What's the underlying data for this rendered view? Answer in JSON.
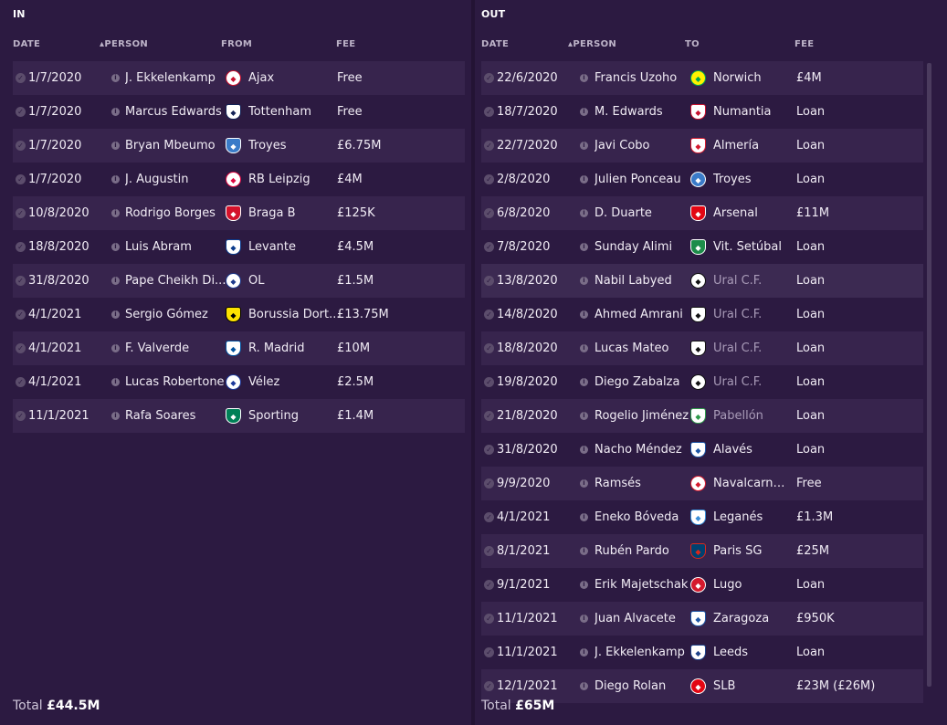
{
  "in": {
    "title": "IN",
    "headers": {
      "date": "DATE",
      "person": "PERSON",
      "from": "FROM",
      "fee": "FEE"
    },
    "rows": [
      {
        "date": "1/7/2020",
        "person": "J. Ekkelenkamp",
        "club": "Ajax",
        "fee": "Free",
        "crest_bg": "#ffffff",
        "crest_fg": "#c8102e"
      },
      {
        "date": "1/7/2020",
        "person": "Marcus Edwards",
        "club": "Tottenham",
        "fee": "Free",
        "crest_bg": "#ffffff",
        "crest_fg": "#132257"
      },
      {
        "date": "1/7/2020",
        "person": "Bryan Mbeumo",
        "club": "Troyes",
        "fee": "£6.75M",
        "crest_bg": "#3a7bc8",
        "crest_fg": "#ffffff"
      },
      {
        "date": "1/7/2020",
        "person": "J. Augustin",
        "club": "RB Leipzig",
        "fee": "£4M",
        "crest_bg": "#ffffff",
        "crest_fg": "#dd0741"
      },
      {
        "date": "10/8/2020",
        "person": "Rodrigo Borges",
        "club": "Braga B",
        "fee": "£125K",
        "crest_bg": "#d4122b",
        "crest_fg": "#ffffff"
      },
      {
        "date": "18/8/2020",
        "person": "Luis Abram",
        "club": "Levante",
        "fee": "£4.5M",
        "crest_bg": "#ffffff",
        "crest_fg": "#0b3b8c"
      },
      {
        "date": "31/8/2020",
        "person": "Pape Cheikh Di...",
        "club": "OL",
        "fee": "£1.5M",
        "crest_bg": "#ffffff",
        "crest_fg": "#1d3a8c"
      },
      {
        "date": "4/1/2021",
        "person": "Sergio Gómez",
        "club": "Borussia Dort...",
        "fee": "£13.75M",
        "crest_bg": "#fde100",
        "crest_fg": "#000000"
      },
      {
        "date": "4/1/2021",
        "person": "F. Valverde",
        "club": "R. Madrid",
        "fee": "£10M",
        "crest_bg": "#ffffff",
        "crest_fg": "#00529f"
      },
      {
        "date": "4/1/2021",
        "person": "Lucas Robertone",
        "club": "Vélez",
        "fee": "£2.5M",
        "crest_bg": "#ffffff",
        "crest_fg": "#1d3a9c"
      },
      {
        "date": "11/1/2021",
        "person": "Rafa Soares",
        "club": "Sporting",
        "fee": "£1.4M",
        "crest_bg": "#008057",
        "crest_fg": "#ffffff"
      }
    ],
    "total_label": "Total",
    "total_value": "£44.5M"
  },
  "out": {
    "title": "OUT",
    "headers": {
      "date": "DATE",
      "person": "PERSON",
      "to": "TO",
      "fee": "FEE"
    },
    "rows": [
      {
        "date": "22/6/2020",
        "person": "Francis Uzoho",
        "club": "Norwich",
        "fee": "£4M",
        "crest_bg": "#fff200",
        "crest_fg": "#00a650",
        "dim": false
      },
      {
        "date": "18/7/2020",
        "person": "M. Edwards",
        "club": "Numantia",
        "fee": "Loan",
        "crest_bg": "#ffffff",
        "crest_fg": "#c8102e",
        "dim": false
      },
      {
        "date": "22/7/2020",
        "person": "Javi Cobo",
        "club": "Almería",
        "fee": "Loan",
        "crest_bg": "#ffffff",
        "crest_fg": "#d5192d",
        "dim": false
      },
      {
        "date": "2/8/2020",
        "person": "Julien Ponceau",
        "club": "Troyes",
        "fee": "Loan",
        "crest_bg": "#3a7bc8",
        "crest_fg": "#ffffff",
        "dim": false
      },
      {
        "date": "6/8/2020",
        "person": "D. Duarte",
        "club": "Arsenal",
        "fee": "£11M",
        "crest_bg": "#e30613",
        "crest_fg": "#ffffff",
        "dim": false
      },
      {
        "date": "7/8/2020",
        "person": "Sunday Alimi",
        "club": "Vit. Setúbal",
        "fee": "Loan",
        "crest_bg": "#1d8c4a",
        "crest_fg": "#ffffff",
        "dim": false
      },
      {
        "date": "13/8/2020",
        "person": "Nabil Labyed",
        "club": "Ural C.F.",
        "fee": "Loan",
        "crest_bg": "#ffffff",
        "crest_fg": "#111111",
        "dim": true
      },
      {
        "date": "14/8/2020",
        "person": "Ahmed Amrani",
        "club": "Ural C.F.",
        "fee": "Loan",
        "crest_bg": "#ffffff",
        "crest_fg": "#111111",
        "dim": true
      },
      {
        "date": "18/8/2020",
        "person": "Lucas Mateo",
        "club": "Ural C.F.",
        "fee": "Loan",
        "crest_bg": "#ffffff",
        "crest_fg": "#111111",
        "dim": true
      },
      {
        "date": "19/8/2020",
        "person": "Diego Zabalza",
        "club": "Ural C.F.",
        "fee": "Loan",
        "crest_bg": "#ffffff",
        "crest_fg": "#111111",
        "dim": true
      },
      {
        "date": "21/8/2020",
        "person": "Rogelio Jiménez",
        "club": "Pabellón",
        "fee": "Loan",
        "crest_bg": "#ffffff",
        "crest_fg": "#2e9a4a",
        "dim": true
      },
      {
        "date": "31/8/2020",
        "person": "Nacho Méndez",
        "club": "Alavés",
        "fee": "Loan",
        "crest_bg": "#ffffff",
        "crest_fg": "#1c56a6",
        "dim": false
      },
      {
        "date": "9/9/2020",
        "person": "Ramsés",
        "club": "Navalcarnero",
        "fee": "Free",
        "crest_bg": "#ffffff",
        "crest_fg": "#d5192d",
        "dim": false
      },
      {
        "date": "4/1/2021",
        "person": "Eneko Bóveda",
        "club": "Leganés",
        "fee": "£1.3M",
        "crest_bg": "#ffffff",
        "crest_fg": "#3a8fd8",
        "dim": false
      },
      {
        "date": "8/1/2021",
        "person": "Rubén Pardo",
        "club": "Paris SG",
        "fee": "£25M",
        "crest_bg": "#004170",
        "crest_fg": "#da291c",
        "dim": false
      },
      {
        "date": "9/1/2021",
        "person": "Erik Majetschak",
        "club": "Lugo",
        "fee": "Loan",
        "crest_bg": "#d5192d",
        "crest_fg": "#ffffff",
        "dim": false
      },
      {
        "date": "11/1/2021",
        "person": "Juan Alvacete",
        "club": "Zaragoza",
        "fee": "£950K",
        "crest_bg": "#ffffff",
        "crest_fg": "#1c56a6",
        "dim": false
      },
      {
        "date": "11/1/2021",
        "person": "J. Ekkelenkamp",
        "club": "Leeds",
        "fee": "Loan",
        "crest_bg": "#ffffff",
        "crest_fg": "#1d428a",
        "dim": false
      },
      {
        "date": "12/1/2021",
        "person": "Diego Rolan",
        "club": "SLB",
        "fee": "£23M (£26M)",
        "crest_bg": "#e30613",
        "crest_fg": "#ffffff",
        "dim": false
      }
    ],
    "total_label": "Total",
    "total_value": "£65M"
  }
}
